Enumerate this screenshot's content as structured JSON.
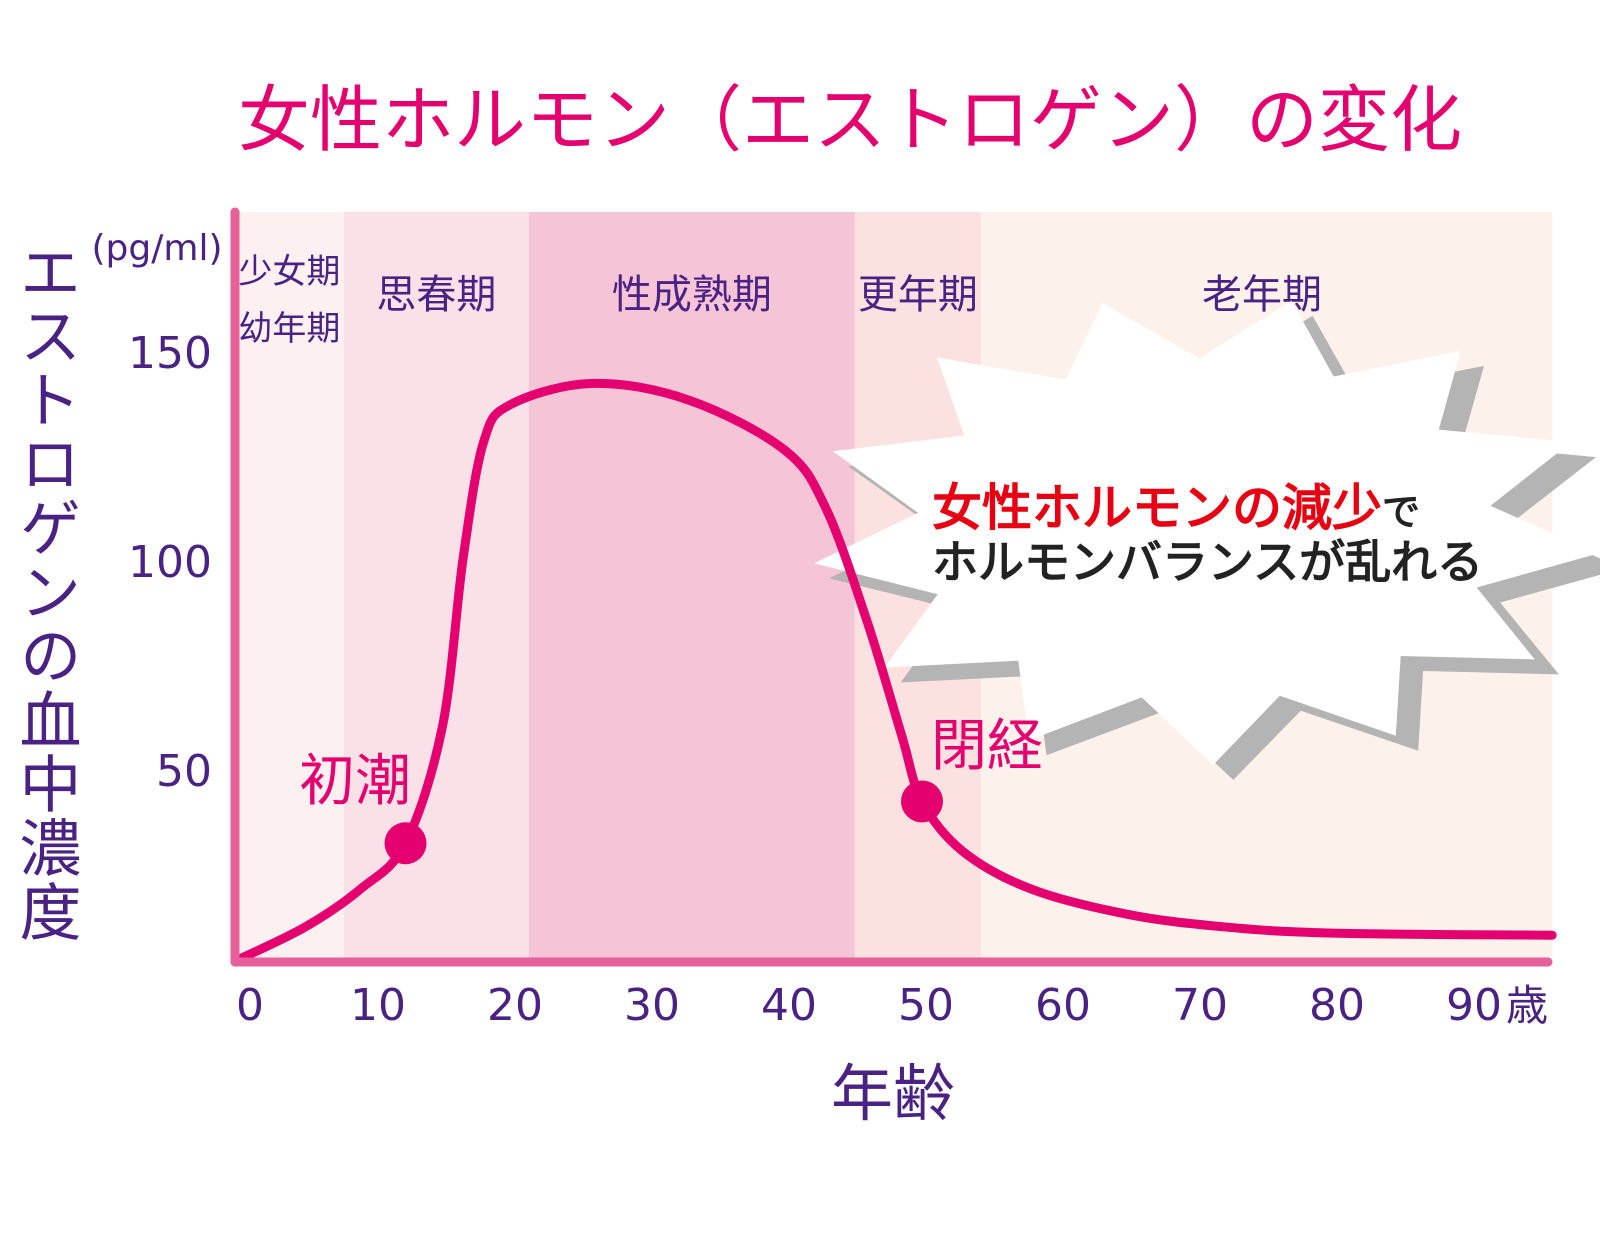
{
  "chart_data": {
    "type": "line",
    "title": "女性ホルモン（エストロゲン）の変化",
    "xlabel": "年齢",
    "ylabel": "エストロゲンの血中濃度",
    "yunit": "(pg/ml)",
    "xunit": "歳",
    "xlim": [
      0,
      96
    ],
    "ylim": [
      0,
      150
    ],
    "xticks": [
      0,
      10,
      20,
      30,
      40,
      50,
      60,
      70,
      80,
      90
    ],
    "yticks": [
      50,
      100,
      150
    ],
    "grid": false,
    "series": [
      {
        "name": "エストロゲン",
        "x": [
          0,
          5,
          9,
          12.3,
          15,
          16.5,
          18,
          20,
          26,
          33,
          40,
          43,
          46,
          48.5,
          50,
          53,
          58,
          65,
          72,
          80,
          96
        ],
        "y": [
          4,
          12,
          21,
          32,
          60,
          100,
          128,
          137,
          142,
          138,
          126,
          112,
          85,
          58,
          42,
          30,
          21,
          15,
          12,
          10.5,
          10
        ]
      }
    ],
    "phases": [
      {
        "label": "少女期",
        "label2": "幼年期",
        "from": -0.15,
        "to": 7.8,
        "color": "#fdf0f1"
      },
      {
        "label": "思春期",
        "from": 7.8,
        "to": 21.3,
        "color": "#fae0e7"
      },
      {
        "label": "性成熟期",
        "from": 21.3,
        "to": 45.1,
        "color": "#f5c4d6"
      },
      {
        "label": "更年期",
        "from": 45.1,
        "to": 54.3,
        "color": "#fbe2e0"
      },
      {
        "label": "老年期",
        "from": 54.3,
        "to": 96,
        "color": "#fdf1eb"
      }
    ],
    "annotations": [
      {
        "label": "初潮",
        "x": 12.3,
        "y": 32
      },
      {
        "label": "閉経",
        "x": 50,
        "y": 42
      }
    ],
    "callout": {
      "line1_red": "女性ホルモンの減少",
      "line1_black": "で",
      "line2": "ホルモンバランスが乱れる"
    },
    "colors": {
      "curve": "#e4006e",
      "axis": "#e6609a",
      "text": "#4a2283",
      "callout_red": "#e60012"
    }
  }
}
